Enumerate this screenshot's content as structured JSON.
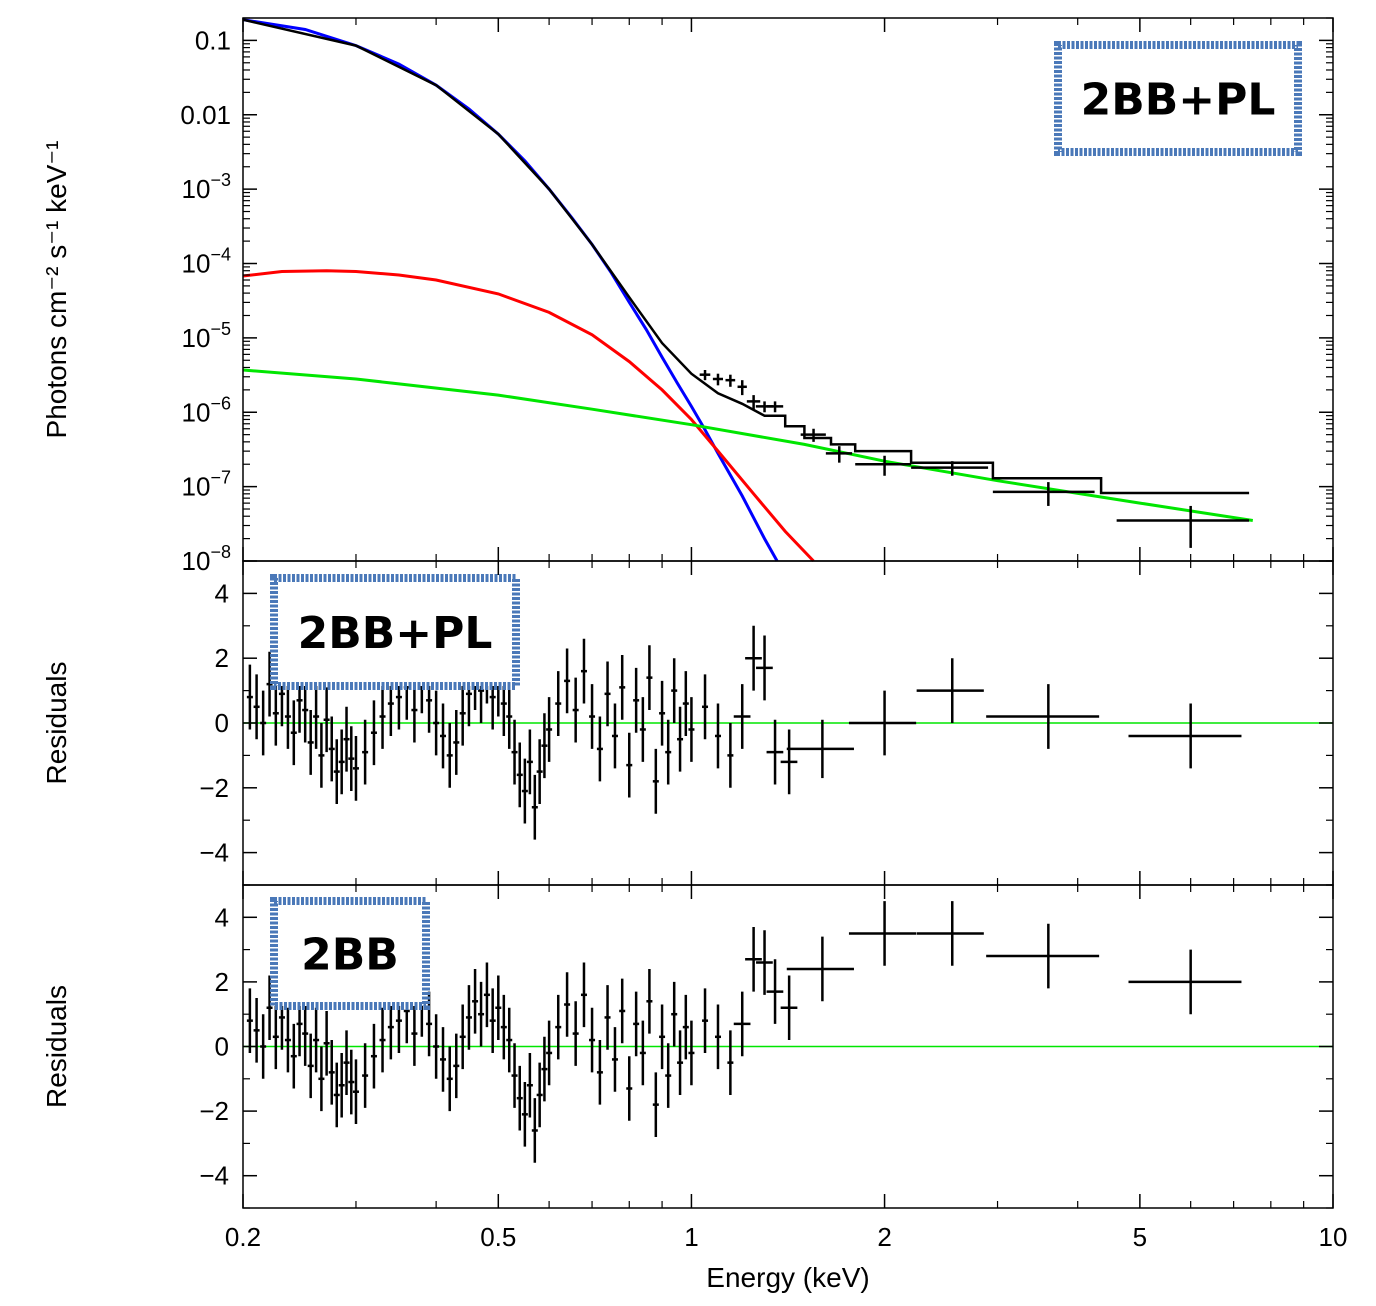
{
  "chart_data": [
    {
      "type": "line",
      "panel": "spectrum",
      "xscale": "log",
      "yscale": "log",
      "xlim": [
        0.2,
        10
      ],
      "ylim": [
        1e-08,
        0.2
      ],
      "ylabel": "Photons cm⁻² s⁻¹ keV⁻¹",
      "y_ticks": [
        {
          "value": 0.1,
          "base": "0.1",
          "exp": ""
        },
        {
          "value": 0.01,
          "base": "0.01",
          "exp": ""
        },
        {
          "value": 0.001,
          "base": "10",
          "exp": "−3"
        },
        {
          "value": 0.0001,
          "base": "10",
          "exp": "−4"
        },
        {
          "value": 1e-05,
          "base": "10",
          "exp": "−5"
        },
        {
          "value": 1e-06,
          "base": "10",
          "exp": "−6"
        },
        {
          "value": 1e-07,
          "base": "10",
          "exp": "−7"
        },
        {
          "value": 1e-08,
          "base": "10",
          "exp": "−8"
        }
      ],
      "annotation": "2BB+PL",
      "series": [
        {
          "color": "#0000ff",
          "style": "solid",
          "points": [
            [
              0.2,
              0.19
            ],
            [
              0.25,
              0.14
            ],
            [
              0.3,
              0.085
            ],
            [
              0.35,
              0.048
            ],
            [
              0.4,
              0.025
            ],
            [
              0.45,
              0.012
            ],
            [
              0.5,
              0.0055
            ],
            [
              0.55,
              0.0024
            ],
            [
              0.6,
              0.001
            ],
            [
              0.65,
              0.00042
            ],
            [
              0.7,
              0.00018
            ],
            [
              0.75,
              7.5e-05
            ],
            [
              0.8,
              3e-05
            ],
            [
              0.85,
              1.3e-05
            ],
            [
              0.9,
              5.5e-06
            ],
            [
              0.95,
              2.5e-06
            ],
            [
              1.0,
              1.2e-06
            ],
            [
              1.05,
              5.8e-07
            ],
            [
              1.1,
              2.8e-07
            ],
            [
              1.2,
              7.5e-08
            ],
            [
              1.3,
              2e-08
            ],
            [
              1.36,
              1e-08
            ]
          ]
        },
        {
          "color": "#ff0000",
          "style": "solid",
          "points": [
            [
              0.2,
              6.8e-05
            ],
            [
              0.23,
              7.8e-05
            ],
            [
              0.27,
              8e-05
            ],
            [
              0.3,
              7.8e-05
            ],
            [
              0.35,
              7e-05
            ],
            [
              0.4,
              6e-05
            ],
            [
              0.5,
              3.9e-05
            ],
            [
              0.6,
              2.2e-05
            ],
            [
              0.7,
              1.1e-05
            ],
            [
              0.8,
              4.8e-06
            ],
            [
              0.9,
              2e-06
            ],
            [
              1.0,
              8e-07
            ],
            [
              1.1,
              3e-07
            ],
            [
              1.25,
              8e-08
            ],
            [
              1.4,
              2.5e-08
            ],
            [
              1.55,
              1e-08
            ]
          ]
        },
        {
          "color": "#00e600",
          "style": "solid",
          "points": [
            [
              0.2,
              3.7e-06
            ],
            [
              0.3,
              2.8e-06
            ],
            [
              0.5,
              1.7e-06
            ],
            [
              0.7,
              1.1e-06
            ],
            [
              1.0,
              6.8e-07
            ],
            [
              1.5,
              3.7e-07
            ],
            [
              2.0,
              2.2e-07
            ],
            [
              3.0,
              1.2e-07
            ],
            [
              5.0,
              6e-08
            ],
            [
              7.5,
              3.5e-08
            ]
          ]
        }
      ],
      "model": {
        "color": "#000000",
        "points": [
          [
            0.2,
            0.19
          ],
          [
            0.3,
            0.085
          ],
          [
            0.4,
            0.025
          ],
          [
            0.5,
            0.0055
          ],
          [
            0.6,
            0.001
          ],
          [
            0.7,
            0.00018
          ],
          [
            0.8,
            3.5e-05
          ],
          [
            0.9,
            8.5e-06
          ],
          [
            1.0,
            3.3e-06
          ],
          [
            1.1,
            1.8e-06
          ],
          [
            1.2,
            1.3e-06
          ],
          [
            1.3,
            9e-07
          ]
        ],
        "steps": [
          [
            1.3,
            1.4,
            9e-07
          ],
          [
            1.4,
            1.5,
            6.5e-07
          ],
          [
            1.5,
            1.65,
            4.5e-07
          ],
          [
            1.65,
            1.8,
            3.7e-07
          ],
          [
            1.8,
            2.2,
            3e-07
          ],
          [
            2.2,
            2.95,
            2.1e-07
          ],
          [
            2.95,
            4.35,
            1.3e-07
          ],
          [
            4.35,
            7.4,
            8.2e-08
          ]
        ]
      },
      "data": [
        [
          1.05,
          3.2e-06,
          5e-07,
          0.02
        ],
        [
          1.1,
          2.8e-06,
          5e-07,
          0.02
        ],
        [
          1.15,
          2.7e-06,
          5e-07,
          0.02
        ],
        [
          1.2,
          2.2e-06,
          5e-07,
          0.02
        ],
        [
          1.25,
          1.4e-06,
          3e-07,
          0.03
        ],
        [
          1.3,
          1.2e-06,
          2e-07,
          0.04
        ],
        [
          1.35,
          1.2e-06,
          2e-07,
          0.04
        ],
        [
          1.55,
          5e-07,
          1e-07,
          0.07
        ],
        [
          1.7,
          2.8e-07,
          7e-08,
          0.08
        ],
        [
          2.0,
          2e-07,
          6e-08,
          0.2
        ],
        [
          2.55,
          1.8e-07,
          4e-08,
          0.35
        ],
        [
          3.6,
          8.5e-08,
          3e-08,
          0.65
        ],
        [
          6.0,
          3.5e-08,
          2e-08,
          1.4
        ]
      ]
    },
    {
      "type": "scatter",
      "panel": "residuals-2bb-pl",
      "xscale": "log",
      "xlim": [
        0.2,
        10
      ],
      "ylim": [
        -5,
        5
      ],
      "ylabel": "Residuals",
      "y_ticks": [
        4,
        2,
        0,
        -2,
        -4
      ],
      "y_tick_labels": [
        "4",
        "2",
        "0",
        "−2",
        "−4"
      ],
      "annotation": "2BB+PL",
      "zero_line_color": "#00e600",
      "points": [
        [
          0.205,
          0.8,
          1
        ],
        [
          0.21,
          0.5,
          1
        ],
        [
          0.215,
          0.0,
          1
        ],
        [
          0.22,
          1.2,
          1
        ],
        [
          0.225,
          0.3,
          1
        ],
        [
          0.23,
          0.9,
          1
        ],
        [
          0.235,
          0.2,
          1
        ],
        [
          0.24,
          -0.3,
          1
        ],
        [
          0.245,
          0.7,
          1
        ],
        [
          0.25,
          0.4,
          1
        ],
        [
          0.255,
          -0.6,
          1
        ],
        [
          0.26,
          0.2,
          1
        ],
        [
          0.265,
          -1.0,
          1
        ],
        [
          0.27,
          0.1,
          1
        ],
        [
          0.275,
          -0.8,
          1
        ],
        [
          0.28,
          -1.5,
          1
        ],
        [
          0.285,
          -1.2,
          1
        ],
        [
          0.29,
          -0.5,
          1
        ],
        [
          0.295,
          -1.1,
          1
        ],
        [
          0.3,
          -1.4,
          1
        ],
        [
          0.31,
          -0.9,
          1
        ],
        [
          0.32,
          -0.3,
          1
        ],
        [
          0.33,
          0.2,
          1
        ],
        [
          0.34,
          0.6,
          1
        ],
        [
          0.35,
          0.8,
          1
        ],
        [
          0.36,
          1.1,
          1
        ],
        [
          0.37,
          0.4,
          1
        ],
        [
          0.38,
          1.3,
          1
        ],
        [
          0.39,
          0.7,
          1
        ],
        [
          0.4,
          0.0,
          1
        ],
        [
          0.41,
          -0.4,
          1
        ],
        [
          0.42,
          -1.0,
          1
        ],
        [
          0.43,
          -0.6,
          1
        ],
        [
          0.44,
          0.3,
          1
        ],
        [
          0.45,
          0.9,
          1
        ],
        [
          0.46,
          1.4,
          1
        ],
        [
          0.47,
          1.0,
          1
        ],
        [
          0.48,
          1.6,
          1
        ],
        [
          0.49,
          0.8,
          1
        ],
        [
          0.5,
          1.2,
          1
        ],
        [
          0.51,
          0.6,
          1
        ],
        [
          0.52,
          0.2,
          1
        ],
        [
          0.53,
          -0.9,
          1
        ],
        [
          0.54,
          -1.6,
          1
        ],
        [
          0.55,
          -2.1,
          1
        ],
        [
          0.56,
          -1.2,
          1
        ],
        [
          0.57,
          -2.6,
          1
        ],
        [
          0.58,
          -1.5,
          1
        ],
        [
          0.59,
          -0.7,
          1
        ],
        [
          0.6,
          -0.2,
          1
        ],
        [
          0.62,
          0.6,
          1
        ],
        [
          0.64,
          1.3,
          1
        ],
        [
          0.66,
          0.4,
          1
        ],
        [
          0.68,
          1.6,
          1
        ],
        [
          0.7,
          0.2,
          1
        ],
        [
          0.72,
          -0.8,
          1
        ],
        [
          0.74,
          0.9,
          1
        ],
        [
          0.76,
          -0.4,
          1
        ],
        [
          0.78,
          1.1,
          1
        ],
        [
          0.8,
          -1.3,
          1
        ],
        [
          0.82,
          0.7,
          1
        ],
        [
          0.84,
          -0.2,
          1
        ],
        [
          0.86,
          1.4,
          1
        ],
        [
          0.88,
          -1.8,
          1
        ],
        [
          0.9,
          0.3,
          1
        ],
        [
          0.92,
          -0.9,
          1
        ],
        [
          0.94,
          1.0,
          1
        ],
        [
          0.96,
          -0.5,
          1
        ],
        [
          0.98,
          0.6,
          1
        ],
        [
          1.0,
          -0.2,
          1
        ],
        [
          1.05,
          0.5,
          1
        ],
        [
          1.1,
          -0.4,
          1
        ],
        [
          1.15,
          -1.0,
          1
        ],
        [
          1.2,
          0.2,
          1
        ],
        [
          1.25,
          2.0,
          1.0
        ],
        [
          1.3,
          1.7,
          1.0
        ],
        [
          1.35,
          -0.9,
          1.0
        ],
        [
          1.42,
          -1.2,
          1.0
        ],
        [
          1.6,
          -0.8,
          0.9
        ],
        [
          2.0,
          0.0,
          1.0
        ],
        [
          2.55,
          1.0,
          1.0
        ],
        [
          3.6,
          0.2,
          1.0
        ],
        [
          6.0,
          -0.4,
          1.0
        ]
      ]
    },
    {
      "type": "scatter",
      "panel": "residuals-2bb",
      "xscale": "log",
      "xlim": [
        0.2,
        10
      ],
      "ylim": [
        -5,
        5
      ],
      "ylabel": "Residuals",
      "xlabel": "Energy (keV)",
      "x_ticks": [
        0.2,
        0.5,
        1,
        2,
        5,
        10
      ],
      "x_tick_labels": [
        "0.2",
        "0.5",
        "1",
        "2",
        "5",
        "10"
      ],
      "y_ticks": [
        4,
        2,
        0,
        -2,
        -4
      ],
      "y_tick_labels": [
        "4",
        "2",
        "0",
        "−2",
        "−4"
      ],
      "annotation": "2BB",
      "zero_line_color": "#00e600",
      "points": [
        [
          0.205,
          0.8,
          1
        ],
        [
          0.21,
          0.5,
          1
        ],
        [
          0.215,
          0.0,
          1
        ],
        [
          0.22,
          1.2,
          1
        ],
        [
          0.225,
          0.3,
          1
        ],
        [
          0.23,
          0.9,
          1
        ],
        [
          0.235,
          0.2,
          1
        ],
        [
          0.24,
          -0.3,
          1
        ],
        [
          0.245,
          0.7,
          1
        ],
        [
          0.25,
          0.4,
          1
        ],
        [
          0.255,
          -0.6,
          1
        ],
        [
          0.26,
          0.2,
          1
        ],
        [
          0.265,
          -1.0,
          1
        ],
        [
          0.27,
          0.1,
          1
        ],
        [
          0.275,
          -0.8,
          1
        ],
        [
          0.28,
          -1.5,
          1
        ],
        [
          0.285,
          -1.2,
          1
        ],
        [
          0.29,
          -0.5,
          1
        ],
        [
          0.295,
          -1.1,
          1
        ],
        [
          0.3,
          -1.4,
          1
        ],
        [
          0.31,
          -0.9,
          1
        ],
        [
          0.32,
          -0.3,
          1
        ],
        [
          0.33,
          0.2,
          1
        ],
        [
          0.34,
          0.6,
          1
        ],
        [
          0.35,
          0.8,
          1
        ],
        [
          0.36,
          1.1,
          1
        ],
        [
          0.37,
          0.4,
          1
        ],
        [
          0.38,
          1.3,
          1
        ],
        [
          0.39,
          0.7,
          1
        ],
        [
          0.4,
          0.0,
          1
        ],
        [
          0.41,
          -0.4,
          1
        ],
        [
          0.42,
          -1.0,
          1
        ],
        [
          0.43,
          -0.6,
          1
        ],
        [
          0.44,
          0.3,
          1
        ],
        [
          0.45,
          0.9,
          1
        ],
        [
          0.46,
          1.4,
          1
        ],
        [
          0.47,
          1.0,
          1
        ],
        [
          0.48,
          1.6,
          1
        ],
        [
          0.49,
          0.8,
          1
        ],
        [
          0.5,
          1.2,
          1
        ],
        [
          0.51,
          0.6,
          1
        ],
        [
          0.52,
          0.2,
          1
        ],
        [
          0.53,
          -0.9,
          1
        ],
        [
          0.54,
          -1.6,
          1
        ],
        [
          0.55,
          -2.1,
          1
        ],
        [
          0.56,
          -1.2,
          1
        ],
        [
          0.57,
          -2.6,
          1
        ],
        [
          0.58,
          -1.5,
          1
        ],
        [
          0.59,
          -0.7,
          1
        ],
        [
          0.6,
          -0.2,
          1
        ],
        [
          0.62,
          0.6,
          1
        ],
        [
          0.64,
          1.3,
          1
        ],
        [
          0.66,
          0.4,
          1
        ],
        [
          0.68,
          1.6,
          1
        ],
        [
          0.7,
          0.2,
          1
        ],
        [
          0.72,
          -0.8,
          1
        ],
        [
          0.74,
          0.9,
          1
        ],
        [
          0.76,
          -0.4,
          1
        ],
        [
          0.78,
          1.1,
          1
        ],
        [
          0.8,
          -1.3,
          1
        ],
        [
          0.82,
          0.7,
          1
        ],
        [
          0.84,
          -0.2,
          1
        ],
        [
          0.86,
          1.4,
          1
        ],
        [
          0.88,
          -1.8,
          1
        ],
        [
          0.9,
          0.3,
          1
        ],
        [
          0.92,
          -0.9,
          1
        ],
        [
          0.94,
          1.0,
          1
        ],
        [
          0.96,
          -0.5,
          1
        ],
        [
          0.98,
          0.6,
          1
        ],
        [
          1.0,
          -0.2,
          1
        ],
        [
          1.05,
          0.8,
          1
        ],
        [
          1.1,
          0.3,
          1
        ],
        [
          1.15,
          -0.5,
          1
        ],
        [
          1.2,
          0.7,
          1
        ],
        [
          1.25,
          2.7,
          1.0
        ],
        [
          1.3,
          2.6,
          1.0
        ],
        [
          1.35,
          1.7,
          1.0
        ],
        [
          1.42,
          1.2,
          1.0
        ],
        [
          1.6,
          2.4,
          1.0
        ],
        [
          2.0,
          3.5,
          1.0
        ],
        [
          2.55,
          3.5,
          1.0
        ],
        [
          3.6,
          2.8,
          1.0
        ],
        [
          6.0,
          2.0,
          1.0
        ]
      ]
    }
  ]
}
